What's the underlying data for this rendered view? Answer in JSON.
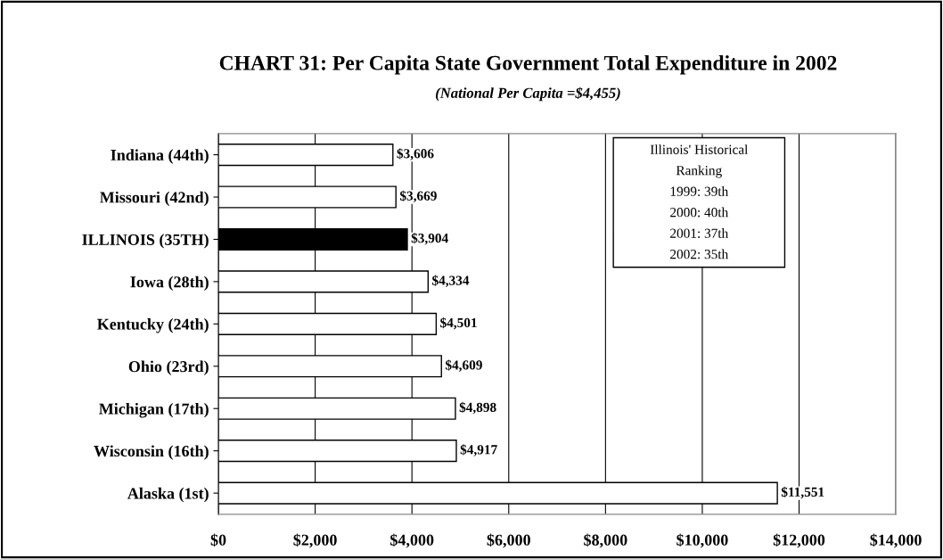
{
  "chart_data": {
    "type": "bar",
    "orientation": "horizontal",
    "title": "CHART 31: Per Capita State Government Total Expenditure in 2002",
    "subtitle": "(National Per Capita =$4,455)",
    "categories": [
      "Indiana (44th)",
      "Missouri (42nd)",
      "ILLINOIS (35TH)",
      "Iowa (28th)",
      "Kentucky (24th)",
      "Ohio (23rd)",
      "Michigan (17th)",
      "Wisconsin (16th)",
      "Alaska (1st)"
    ],
    "values": [
      3606,
      3669,
      3904,
      4334,
      4501,
      4609,
      4898,
      4917,
      11551
    ],
    "colors": [
      "#ffffff",
      "#ffffff",
      "#000000",
      "#ffffff",
      "#ffffff",
      "#ffffff",
      "#ffffff",
      "#ffffff",
      "#ffffff"
    ],
    "value_labels": [
      "$3,606",
      "$3,669",
      "$3,904",
      "$4,334",
      "$4,501",
      "$4,609",
      "$4,898",
      "$4,917",
      "$11,551"
    ],
    "xlim": [
      0,
      14000
    ],
    "xticks": [
      {
        "value": 0,
        "label": "$0"
      },
      {
        "value": 2000,
        "label": "$2,000"
      },
      {
        "value": 4000,
        "label": "$4,000"
      },
      {
        "value": 6000,
        "label": "$6,000"
      },
      {
        "value": 8000,
        "label": "$8,000"
      },
      {
        "value": 10000,
        "label": "$10,000"
      },
      {
        "value": 12000,
        "label": "$12,000"
      },
      {
        "value": 14000,
        "label": "$14,000"
      }
    ],
    "grid": "x",
    "annotations": [
      "Illinois' Historical",
      "Ranking",
      "1999: 39th",
      "2000: 40th",
      "2001: 37th",
      "2002: 35th"
    ]
  }
}
